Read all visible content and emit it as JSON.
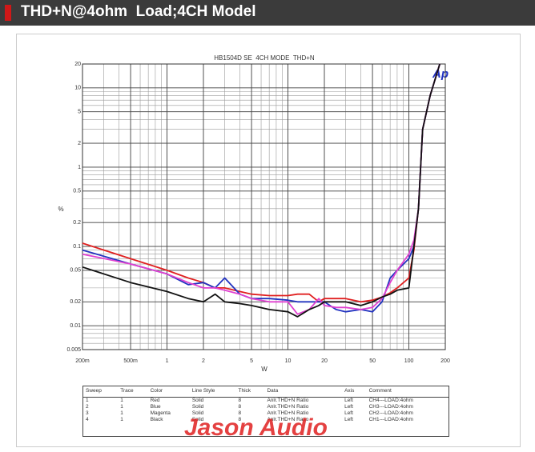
{
  "header": {
    "title": "THD+N@4ohm  Load;4CH Model"
  },
  "chart_data": {
    "type": "line",
    "title": "HB1504D SE  4CH MODE  THD+N",
    "logo": "Ap",
    "x_label": "W",
    "y_label": "%",
    "xscale": "log",
    "yscale": "log",
    "grid": true,
    "x": [
      0.2,
      0.5,
      1,
      1.5,
      2,
      2.5,
      3,
      4,
      5,
      7,
      10,
      12,
      15,
      18,
      20,
      25,
      30,
      40,
      50,
      60,
      70,
      80,
      100,
      110,
      120,
      125,
      130,
      150,
      180
    ],
    "series": [
      {
        "color": "#e02020",
        "values": [
          0.11,
          0.07,
          0.05,
          0.04,
          0.035,
          0.03,
          0.03,
          0.027,
          0.025,
          0.024,
          0.024,
          0.025,
          0.025,
          0.02,
          0.022,
          0.022,
          0.022,
          0.02,
          0.021,
          0.023,
          0.026,
          0.03,
          0.04,
          0.09,
          0.3,
          1,
          3,
          8,
          20
        ]
      },
      {
        "color": "#2233c0",
        "values": [
          0.09,
          0.06,
          0.045,
          0.033,
          0.035,
          0.03,
          0.04,
          0.025,
          0.022,
          0.022,
          0.021,
          0.02,
          0.02,
          0.02,
          0.02,
          0.016,
          0.015,
          0.016,
          0.015,
          0.02,
          0.04,
          0.05,
          0.07,
          0.1,
          0.3,
          1,
          3,
          8,
          20
        ]
      },
      {
        "color": "#e040d0",
        "values": [
          0.08,
          0.06,
          0.045,
          0.035,
          0.03,
          0.03,
          0.028,
          0.025,
          0.022,
          0.02,
          0.02,
          0.014,
          0.016,
          0.022,
          0.018,
          0.017,
          0.017,
          0.016,
          0.017,
          0.022,
          0.035,
          0.05,
          0.08,
          0.12,
          0.3,
          1,
          3,
          8,
          20
        ]
      },
      {
        "color": "#111111",
        "values": [
          0.055,
          0.035,
          0.027,
          0.022,
          0.02,
          0.025,
          0.02,
          0.019,
          0.018,
          0.016,
          0.015,
          0.013,
          0.016,
          0.018,
          0.02,
          0.02,
          0.02,
          0.018,
          0.02,
          0.023,
          0.025,
          0.028,
          0.03,
          0.1,
          0.3,
          1,
          3,
          8,
          20
        ]
      }
    ],
    "xlim": [
      0.2,
      200
    ],
    "xticks": [
      {
        "value": 0.2,
        "label": "200m"
      },
      {
        "value": 0.5,
        "label": "500m"
      },
      1,
      2,
      5,
      10,
      20,
      50,
      100,
      200
    ],
    "ylim": [
      0.005,
      20
    ],
    "yticks": [
      0.005,
      0.01,
      0.02,
      0.05,
      0.1,
      0.2,
      0.5,
      1,
      2,
      5,
      10,
      20
    ]
  },
  "table": {
    "headers": [
      "Sweep",
      "Trace",
      "Color",
      "Line Style",
      "Thick",
      "Data",
      "Axis",
      "Comment"
    ],
    "rows": [
      [
        "1",
        "1",
        "Red",
        "Solid",
        "8",
        "Anlr.THD+N Ratio",
        "Left",
        "CH4---LOAD:4ohm"
      ],
      [
        "2",
        "1",
        "Blue",
        "Solid",
        "8",
        "Anlr.THD+N Ratio",
        "Left",
        "CH3---LOAD:4ohm"
      ],
      [
        "3",
        "1",
        "Magenta",
        "Solid",
        "8",
        "Anlr.THD+N Ratio",
        "Left",
        "CH2---LOAD:4ohm"
      ],
      [
        "4",
        "1",
        "Black",
        "Solid",
        "8",
        "Anlr.THD+N Ratio",
        "Left",
        "CH1---LOAD:4ohm"
      ]
    ]
  },
  "watermark": "Jason Audio"
}
